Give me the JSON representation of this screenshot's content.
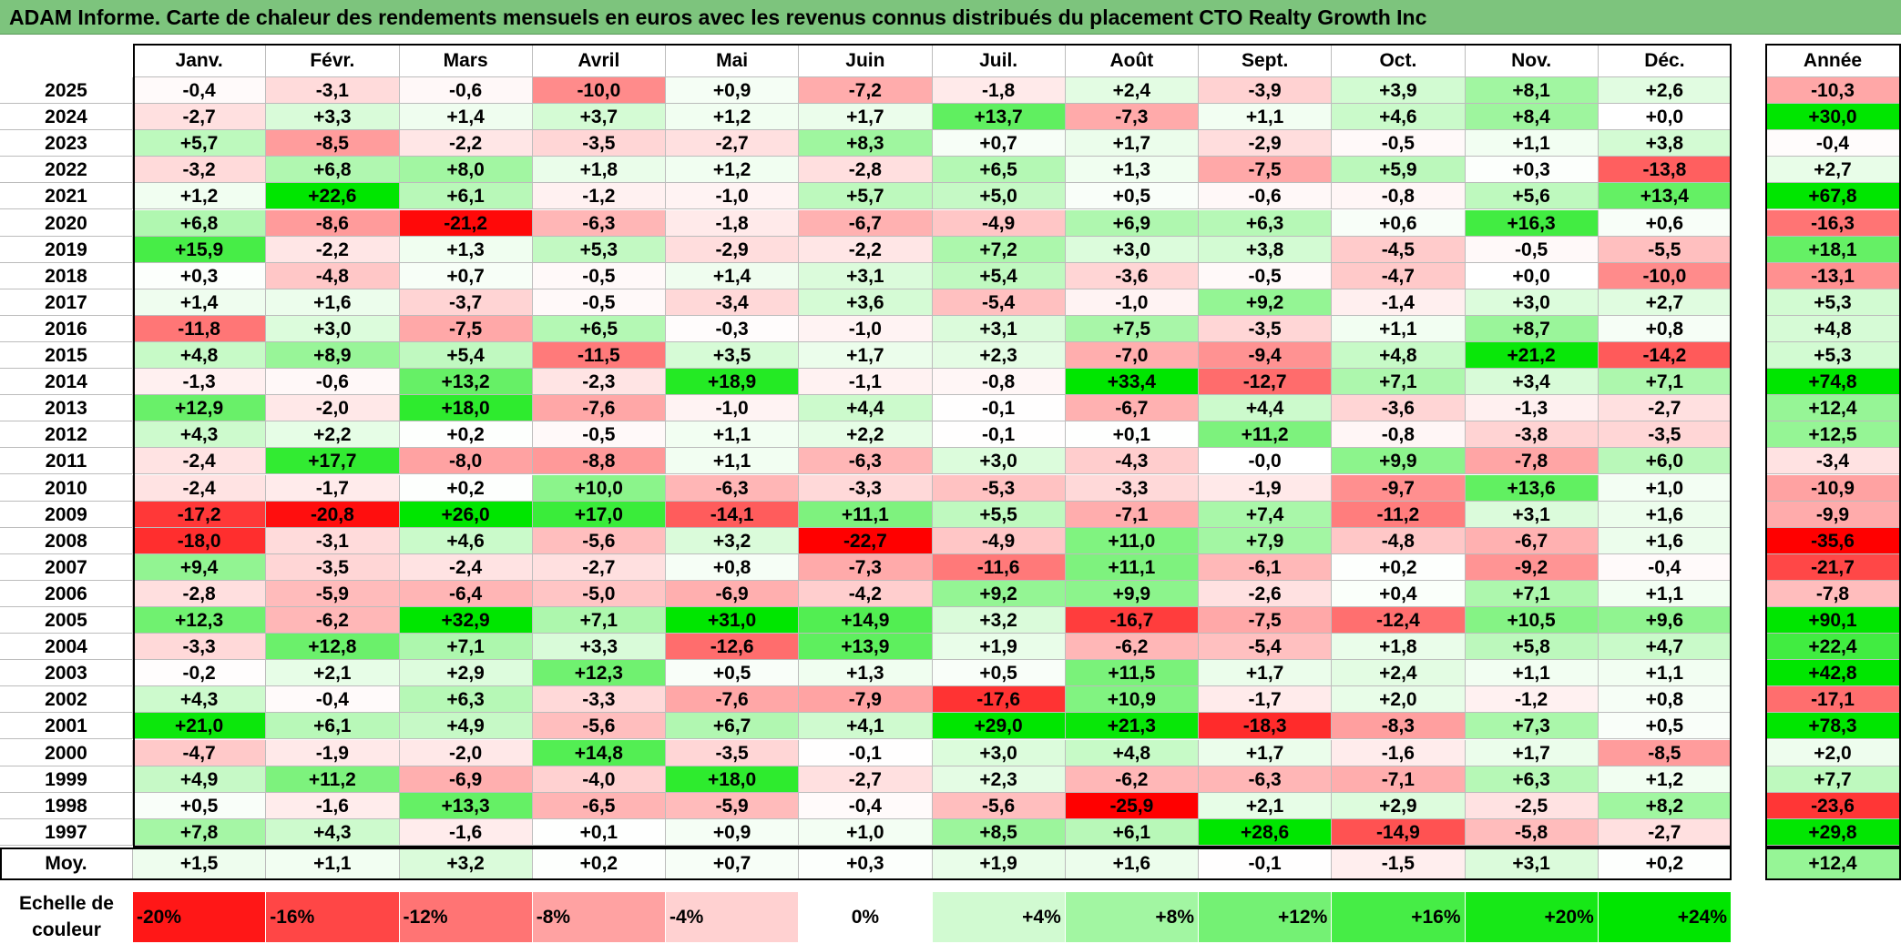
{
  "title": "ADAM Informe. Carte de chaleur des rendements mensuels en euros avec les revenus connus distribués du placement CTO Realty Growth Inc",
  "chart_data": {
    "type": "heatmap",
    "months": [
      "Janv.",
      "Févr.",
      "Mars",
      "Avril",
      "Mai",
      "Juin",
      "Juil.",
      "Août",
      "Sept.",
      "Oct.",
      "Nov.",
      "Déc."
    ],
    "year_header": "Année",
    "avg_label": "Moy.",
    "rows": [
      {
        "year": "2025",
        "months": [
          "-0,4",
          "-3,1",
          "-0,6",
          "-10,0",
          "+0,9",
          "-7,2",
          "-1,8",
          "+2,4",
          "-3,9",
          "+3,9",
          "+8,1",
          "+2,6"
        ],
        "annual": "-10,3"
      },
      {
        "year": "2024",
        "months": [
          "-2,7",
          "+3,3",
          "+1,4",
          "+3,7",
          "+1,2",
          "+1,7",
          "+13,7",
          "-7,3",
          "+1,1",
          "+4,6",
          "+8,4",
          "+0,0"
        ],
        "annual": "+30,0"
      },
      {
        "year": "2023",
        "months": [
          "+5,7",
          "-8,5",
          "-2,2",
          "-3,5",
          "-2,7",
          "+8,3",
          "+0,7",
          "+1,7",
          "-2,9",
          "-0,5",
          "+1,1",
          "+3,8"
        ],
        "annual": "-0,4"
      },
      {
        "year": "2022",
        "months": [
          "-3,2",
          "+6,8",
          "+8,0",
          "+1,8",
          "+1,2",
          "-2,8",
          "+6,5",
          "+1,3",
          "-7,5",
          "+5,9",
          "+0,3",
          "-13,8"
        ],
        "annual": "+2,7"
      },
      {
        "year": "2021",
        "months": [
          "+1,2",
          "+22,6",
          "+6,1",
          "-1,2",
          "-1,0",
          "+5,7",
          "+5,0",
          "+0,5",
          "-0,6",
          "-0,8",
          "+5,6",
          "+13,4"
        ],
        "annual": "+67,8"
      },
      {
        "year": "2020",
        "months": [
          "+6,8",
          "-8,6",
          "-21,2",
          "-6,3",
          "-1,8",
          "-6,7",
          "-4,9",
          "+6,9",
          "+6,3",
          "+0,6",
          "+16,3",
          "+0,6"
        ],
        "annual": "-16,3"
      },
      {
        "year": "2019",
        "months": [
          "+15,9",
          "-2,2",
          "+1,3",
          "+5,3",
          "-2,9",
          "-2,2",
          "+7,2",
          "+3,0",
          "+3,8",
          "-4,5",
          "-0,5",
          "-5,5"
        ],
        "annual": "+18,1"
      },
      {
        "year": "2018",
        "months": [
          "+0,3",
          "-4,8",
          "+0,7",
          "-0,5",
          "+1,4",
          "+3,1",
          "+5,4",
          "-3,6",
          "-0,5",
          "-4,7",
          "+0,0",
          "-10,0"
        ],
        "annual": "-13,1"
      },
      {
        "year": "2017",
        "months": [
          "+1,4",
          "+1,6",
          "-3,7",
          "-0,5",
          "-3,4",
          "+3,6",
          "-5,4",
          "-1,0",
          "+9,2",
          "-1,4",
          "+3,0",
          "+2,7"
        ],
        "annual": "+5,3"
      },
      {
        "year": "2016",
        "months": [
          "-11,8",
          "+3,0",
          "-7,5",
          "+6,5",
          "-0,3",
          "-1,0",
          "+3,1",
          "+7,5",
          "-3,5",
          "+1,1",
          "+8,7",
          "+0,8"
        ],
        "annual": "+4,8"
      },
      {
        "year": "2015",
        "months": [
          "+4,8",
          "+8,9",
          "+5,4",
          "-11,5",
          "+3,5",
          "+1,7",
          "+2,3",
          "-7,0",
          "-9,4",
          "+4,8",
          "+21,2",
          "-14,2"
        ],
        "annual": "+5,3"
      },
      {
        "year": "2014",
        "months": [
          "-1,3",
          "-0,6",
          "+13,2",
          "-2,3",
          "+18,9",
          "-1,1",
          "-0,8",
          "+33,4",
          "-12,7",
          "+7,1",
          "+3,4",
          "+7,1"
        ],
        "annual": "+74,8"
      },
      {
        "year": "2013",
        "months": [
          "+12,9",
          "-2,0",
          "+18,0",
          "-7,6",
          "-1,0",
          "+4,4",
          "-0,1",
          "-6,7",
          "+4,4",
          "-3,6",
          "-1,3",
          "-2,7"
        ],
        "annual": "+12,4"
      },
      {
        "year": "2012",
        "months": [
          "+4,3",
          "+2,2",
          "+0,2",
          "-0,5",
          "+1,1",
          "+2,2",
          "-0,1",
          "+0,1",
          "+11,2",
          "-0,8",
          "-3,8",
          "-3,5"
        ],
        "annual": "+12,5"
      },
      {
        "year": "2011",
        "months": [
          "-2,4",
          "+17,7",
          "-8,0",
          "-8,8",
          "+1,1",
          "-6,3",
          "+3,0",
          "-4,3",
          "-0,0",
          "+9,9",
          "-7,8",
          "+6,0"
        ],
        "annual": "-3,4"
      },
      {
        "year": "2010",
        "months": [
          "-2,4",
          "-1,7",
          "+0,2",
          "+10,0",
          "-6,3",
          "-3,3",
          "-5,3",
          "-3,3",
          "-1,9",
          "-9,7",
          "+13,6",
          "+1,0"
        ],
        "annual": "-10,9"
      },
      {
        "year": "2009",
        "months": [
          "-17,2",
          "-20,8",
          "+26,0",
          "+17,0",
          "-14,1",
          "+11,1",
          "+5,5",
          "-7,1",
          "+7,4",
          "-11,2",
          "+3,1",
          "+1,6"
        ],
        "annual": "-9,9"
      },
      {
        "year": "2008",
        "months": [
          "-18,0",
          "-3,1",
          "+4,6",
          "-5,6",
          "+3,2",
          "-22,7",
          "-4,9",
          "+11,0",
          "+7,9",
          "-4,8",
          "-6,7",
          "+1,6"
        ],
        "annual": "-35,6"
      },
      {
        "year": "2007",
        "months": [
          "+9,4",
          "-3,5",
          "-2,4",
          "-2,7",
          "+0,8",
          "-7,3",
          "-11,6",
          "+11,1",
          "-6,1",
          "+0,2",
          "-9,2",
          "-0,4"
        ],
        "annual": "-21,7"
      },
      {
        "year": "2006",
        "months": [
          "-2,8",
          "-5,9",
          "-6,4",
          "-5,0",
          "-6,9",
          "-4,2",
          "+9,2",
          "+9,9",
          "-2,6",
          "+0,4",
          "+7,1",
          "+1,1"
        ],
        "annual": "-7,8"
      },
      {
        "year": "2005",
        "months": [
          "+12,3",
          "-6,2",
          "+32,9",
          "+7,1",
          "+31,0",
          "+14,9",
          "+3,2",
          "-16,7",
          "-7,5",
          "-12,4",
          "+10,5",
          "+9,6"
        ],
        "annual": "+90,1"
      },
      {
        "year": "2004",
        "months": [
          "-3,3",
          "+12,8",
          "+7,1",
          "+3,3",
          "-12,6",
          "+13,9",
          "+1,9",
          "-6,2",
          "-5,4",
          "+1,8",
          "+5,8",
          "+4,7"
        ],
        "annual": "+22,4"
      },
      {
        "year": "2003",
        "months": [
          "-0,2",
          "+2,1",
          "+2,9",
          "+12,3",
          "+0,5",
          "+1,3",
          "+0,5",
          "+11,5",
          "+1,7",
          "+2,4",
          "+1,1",
          "+1,1"
        ],
        "annual": "+42,8"
      },
      {
        "year": "2002",
        "months": [
          "+4,3",
          "-0,4",
          "+6,3",
          "-3,3",
          "-7,6",
          "-7,9",
          "-17,6",
          "+10,9",
          "-1,7",
          "+2,0",
          "-1,2",
          "+0,8"
        ],
        "annual": "-17,1"
      },
      {
        "year": "2001",
        "months": [
          "+21,0",
          "+6,1",
          "+4,9",
          "-5,6",
          "+6,7",
          "+4,1",
          "+29,0",
          "+21,3",
          "-18,3",
          "-8,3",
          "+7,3",
          "+0,5"
        ],
        "annual": "+78,3"
      },
      {
        "year": "2000",
        "months": [
          "-4,7",
          "-1,9",
          "-2,0",
          "+14,8",
          "-3,5",
          "-0,1",
          "+3,0",
          "+4,8",
          "+1,7",
          "-1,6",
          "+1,7",
          "-8,5"
        ],
        "annual": "+2,0"
      },
      {
        "year": "1999",
        "months": [
          "+4,9",
          "+11,2",
          "-6,9",
          "-4,0",
          "+18,0",
          "-2,7",
          "+2,3",
          "-6,2",
          "-6,3",
          "-7,1",
          "+6,3",
          "+1,2"
        ],
        "annual": "+7,7"
      },
      {
        "year": "1998",
        "months": [
          "+0,5",
          "-1,6",
          "+13,3",
          "-6,5",
          "-5,9",
          "-0,4",
          "-5,6",
          "-25,9",
          "+2,1",
          "+2,9",
          "-2,5",
          "+8,2"
        ],
        "annual": "-23,6"
      },
      {
        "year": "1997",
        "months": [
          "+7,8",
          "+4,3",
          "-1,6",
          "+0,1",
          "+0,9",
          "+1,0",
          "+8,5",
          "+6,1",
          "+28,6",
          "-14,9",
          "-5,8",
          "-2,7"
        ],
        "annual": "+29,8"
      }
    ],
    "averages": [
      "+1,5",
      "+1,1",
      "+3,2",
      "+0,2",
      "+0,7",
      "+0,3",
      "+1,9",
      "+1,6",
      "-0,1",
      "-1,5",
      "+3,1",
      "+0,2"
    ],
    "average_annual": "+12,4",
    "scale": {
      "label": "Echelle de couleur",
      "steps": [
        "-20%",
        "-16%",
        "-12%",
        "-8%",
        "-4%",
        "0%",
        "+4%",
        "+8%",
        "+12%",
        "+16%",
        "+20%",
        "+24%"
      ]
    },
    "colors": {
      "title_bg": "#7dc47d",
      "negative_max": "#ff0000",
      "neutral": "#ffffff",
      "positive_max": "#00e600"
    }
  }
}
